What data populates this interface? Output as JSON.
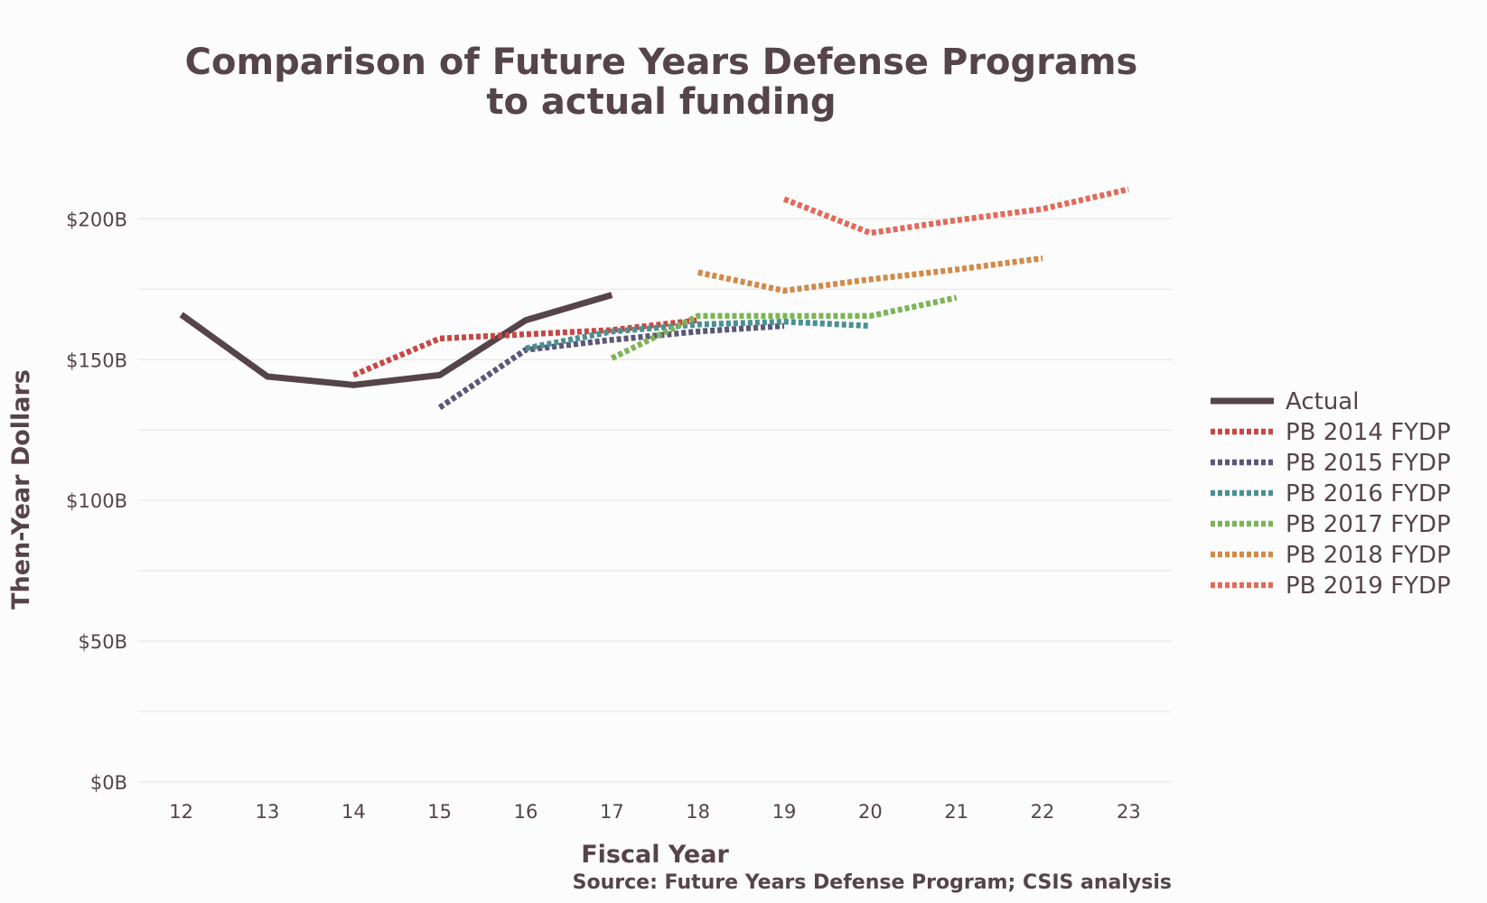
{
  "chart_data": {
    "type": "line",
    "title": [
      "Comparison of Future Years Defense Programs",
      "to actual funding"
    ],
    "xlabel": "Fiscal Year",
    "ylabel": "Then-Year Dollars",
    "caption": "Source: Future Years Defense Program; CSIS analysis",
    "x_ticks": [
      "12",
      "13",
      "14",
      "15",
      "16",
      "17",
      "18",
      "19",
      "20",
      "21",
      "22",
      "23"
    ],
    "y_ticks": [
      {
        "value": 0,
        "label": "$0B"
      },
      {
        "value": 50,
        "label": "$50B"
      },
      {
        "value": 100,
        "label": "$100B"
      },
      {
        "value": 150,
        "label": "$150B"
      },
      {
        "value": 200,
        "label": "$200B"
      }
    ],
    "xlim": [
      11.5,
      23.5
    ],
    "ylim": [
      0,
      220
    ],
    "minor_grid": [
      25,
      75,
      125,
      175
    ],
    "legend_position": "right",
    "series": [
      {
        "name": "Actual",
        "color": "#554449",
        "style": "solid",
        "x": [
          12,
          13,
          14,
          15,
          16,
          17
        ],
        "y": [
          166,
          144,
          141,
          144.5,
          164,
          173
        ]
      },
      {
        "name": "PB 2014 FYDP",
        "color": "#c74745",
        "style": "dotted",
        "x": [
          14,
          15,
          16,
          17,
          18
        ],
        "y": [
          144.5,
          157.5,
          159,
          160.5,
          164
        ]
      },
      {
        "name": "PB 2015 FYDP",
        "color": "#5a5778",
        "style": "dotted",
        "x": [
          15,
          16,
          17,
          18,
          19
        ],
        "y": [
          133,
          153.5,
          157,
          160,
          162
        ]
      },
      {
        "name": "PB 2016 FYDP",
        "color": "#4a9093",
        "style": "dotted",
        "x": [
          16,
          17,
          18,
          19,
          20
        ],
        "y": [
          154,
          160,
          162.5,
          163.5,
          162
        ]
      },
      {
        "name": "PB 2017 FYDP",
        "color": "#7db357",
        "style": "dotted",
        "x": [
          17,
          18,
          19,
          20,
          21
        ],
        "y": [
          150.5,
          165.5,
          165.5,
          165.5,
          172
        ]
      },
      {
        "name": "PB 2018 FYDP",
        "color": "#d08a4a",
        "style": "dotted",
        "x": [
          18,
          19,
          20,
          21,
          22
        ],
        "y": [
          181,
          174.5,
          178.5,
          182,
          186
        ]
      },
      {
        "name": "PB 2019 FYDP",
        "color": "#e26a5a",
        "style": "dotted",
        "x": [
          19,
          20,
          21,
          22,
          23
        ],
        "y": [
          207,
          195,
          199.5,
          203.5,
          210.5
        ]
      }
    ]
  }
}
